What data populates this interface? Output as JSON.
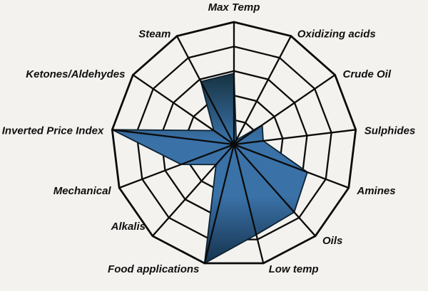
{
  "chart_data": {
    "type": "radar",
    "categories": [
      "Max Temp",
      "Oxidizing acids",
      "Crude Oil",
      "Sulphides",
      "Amines",
      "Oils",
      "Low temp",
      "Food applications",
      "Alkalis",
      "Mechanical",
      "Inverted Price Index",
      "Ketones/Aldehydes",
      "Steam"
    ],
    "values": [
      2.9,
      0.2,
      1.4,
      1.2,
      3.2,
      3.7,
      3.8,
      5.0,
      1.1,
      2.3,
      5.0,
      1.0,
      2.9
    ],
    "value_range": [
      0,
      5
    ],
    "ring_count": 5,
    "grid": true,
    "legend_position": "none"
  },
  "style": {
    "background": "#f3f2ee",
    "grid_color": "#0b0b0b",
    "label_color": "#101010",
    "fill_outline": "#0e2230",
    "fill_gradient_top": "#16303e",
    "fill_gradient_mid": "#3a72a8",
    "fill_gradient_bottom": "#14304a"
  }
}
